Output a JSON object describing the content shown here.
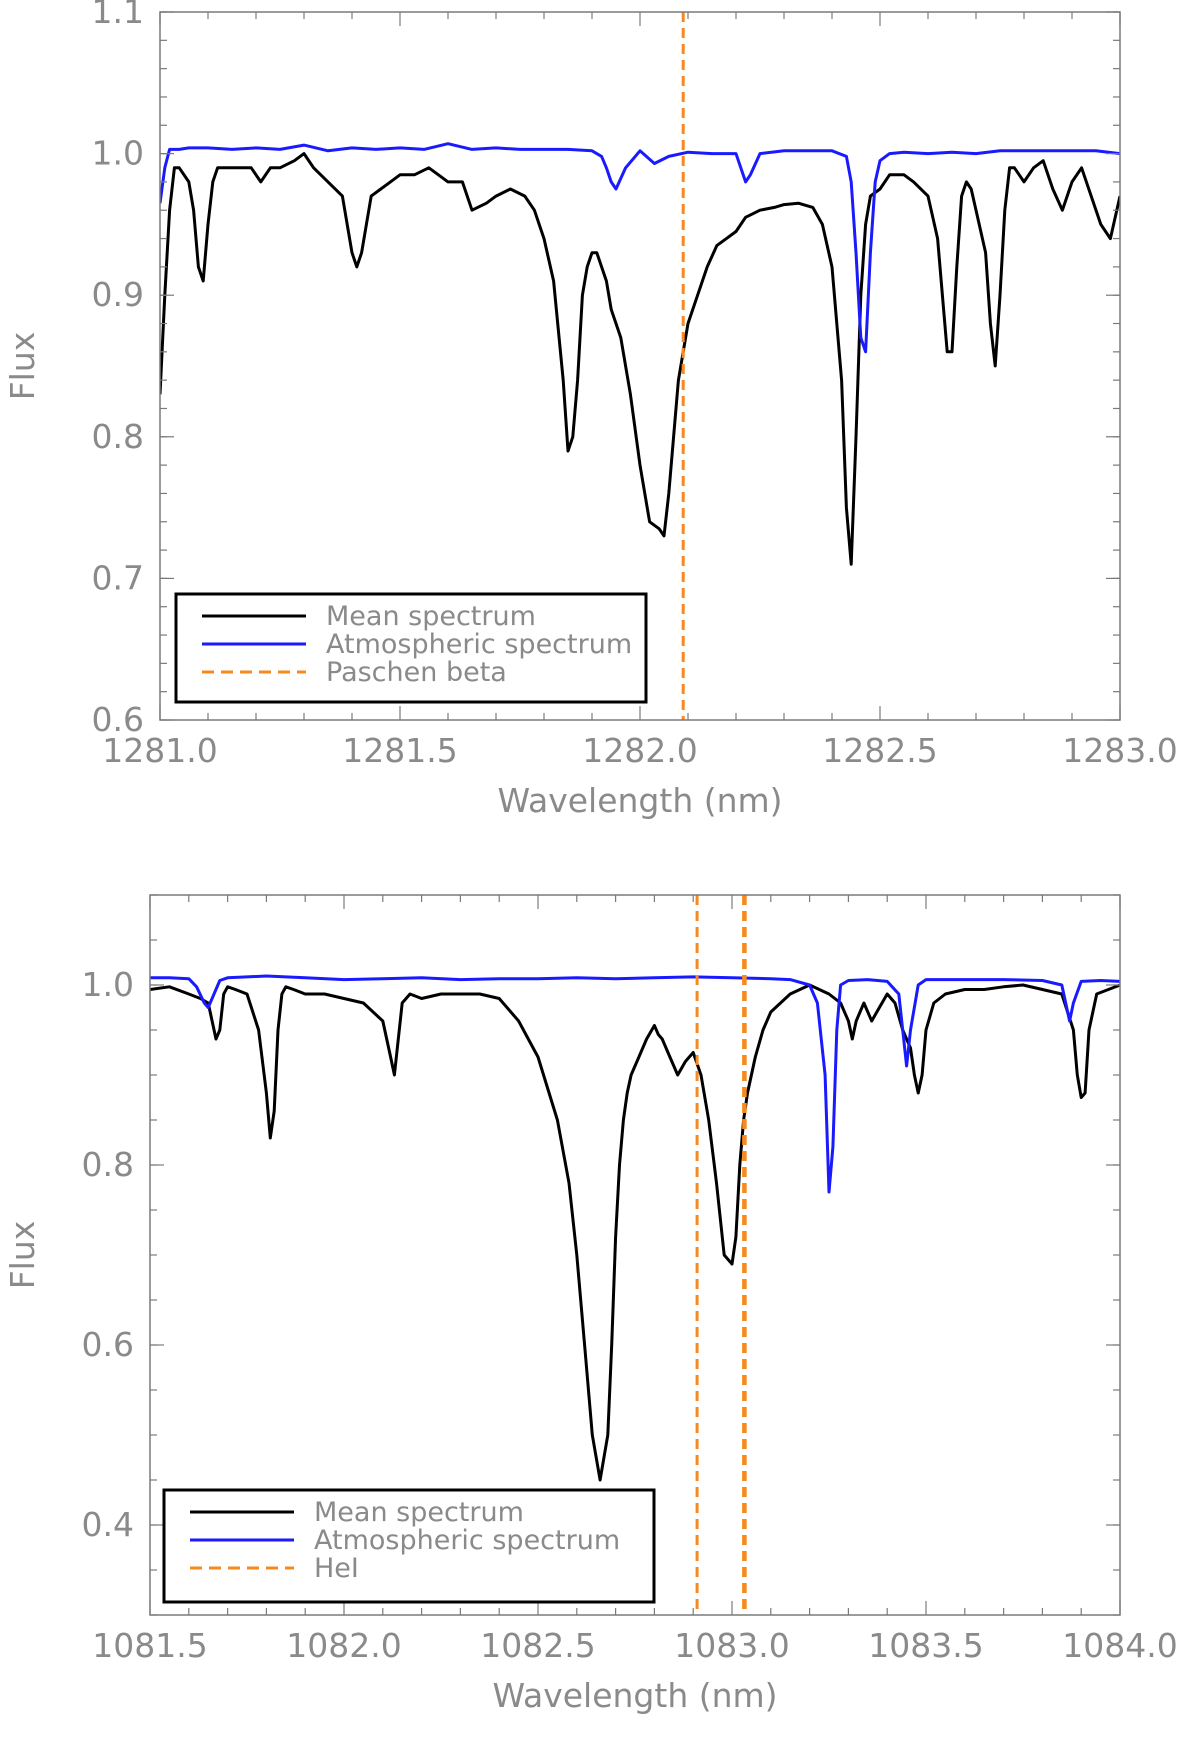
{
  "colors": {
    "mean": "#000000",
    "atmospheric": "#1a1aff",
    "line_marker": "#f7891e",
    "axis": "#7a7a7a",
    "text": "#8a8a8a"
  },
  "chart_data": [
    {
      "type": "line",
      "xlabel": "Wavelength (nm)",
      "ylabel": "Flux",
      "xlim": [
        1281.0,
        1283.0
      ],
      "ylim": [
        0.6,
        1.1
      ],
      "xticks": [
        "1281.0",
        "1281.5",
        "1282.0",
        "1282.5",
        "1283.0"
      ],
      "yticks": [
        "0.6",
        "0.7",
        "0.8",
        "0.9",
        "1.0",
        "1.1"
      ],
      "grid": false,
      "legend_position": "bottom-left",
      "series": [
        {
          "name": "Mean spectrum",
          "color": "#000000",
          "x": [
            1281.0,
            1281.01,
            1281.02,
            1281.03,
            1281.04,
            1281.06,
            1281.07,
            1281.08,
            1281.09,
            1281.1,
            1281.11,
            1281.12,
            1281.14,
            1281.16,
            1281.19,
            1281.21,
            1281.23,
            1281.25,
            1281.28,
            1281.3,
            1281.32,
            1281.35,
            1281.38,
            1281.4,
            1281.41,
            1281.42,
            1281.43,
            1281.44,
            1281.46,
            1281.48,
            1281.5,
            1281.53,
            1281.56,
            1281.58,
            1281.6,
            1281.63,
            1281.65,
            1281.68,
            1281.7,
            1281.73,
            1281.76,
            1281.78,
            1281.8,
            1281.82,
            1281.84,
            1281.85,
            1281.86,
            1281.87,
            1281.88,
            1281.89,
            1281.9,
            1281.91,
            1281.92,
            1281.93,
            1281.94,
            1281.96,
            1281.98,
            1282.0,
            1282.02,
            1282.04,
            1282.05,
            1282.06,
            1282.07,
            1282.08,
            1282.1,
            1282.12,
            1282.14,
            1282.16,
            1282.18,
            1282.2,
            1282.22,
            1282.25,
            1282.28,
            1282.3,
            1282.33,
            1282.36,
            1282.38,
            1282.4,
            1282.42,
            1282.43,
            1282.44,
            1282.45,
            1282.46,
            1282.47,
            1282.48,
            1282.5,
            1282.52,
            1282.55,
            1282.57,
            1282.6,
            1282.62,
            1282.63,
            1282.64,
            1282.65,
            1282.66,
            1282.67,
            1282.68,
            1282.69,
            1282.7,
            1282.72,
            1282.73,
            1282.74,
            1282.75,
            1282.76,
            1282.77,
            1282.78,
            1282.79,
            1282.8,
            1282.82,
            1282.84,
            1282.86,
            1282.88,
            1282.9,
            1282.92,
            1282.94,
            1282.96,
            1282.98,
            1283.0
          ],
          "y": [
            0.83,
            0.9,
            0.96,
            0.99,
            0.99,
            0.98,
            0.96,
            0.92,
            0.91,
            0.95,
            0.98,
            0.99,
            0.99,
            0.99,
            0.99,
            0.98,
            0.99,
            0.99,
            0.995,
            1.0,
            0.99,
            0.98,
            0.97,
            0.93,
            0.92,
            0.93,
            0.95,
            0.97,
            0.975,
            0.98,
            0.985,
            0.985,
            0.99,
            0.985,
            0.98,
            0.98,
            0.96,
            0.965,
            0.97,
            0.975,
            0.97,
            0.96,
            0.94,
            0.91,
            0.84,
            0.79,
            0.8,
            0.84,
            0.9,
            0.92,
            0.93,
            0.93,
            0.92,
            0.91,
            0.89,
            0.87,
            0.83,
            0.78,
            0.74,
            0.735,
            0.73,
            0.76,
            0.8,
            0.84,
            0.88,
            0.9,
            0.92,
            0.935,
            0.94,
            0.945,
            0.955,
            0.96,
            0.962,
            0.964,
            0.965,
            0.962,
            0.95,
            0.92,
            0.84,
            0.75,
            0.71,
            0.8,
            0.9,
            0.95,
            0.97,
            0.975,
            0.985,
            0.985,
            0.98,
            0.97,
            0.94,
            0.9,
            0.86,
            0.86,
            0.92,
            0.97,
            0.98,
            0.975,
            0.96,
            0.93,
            0.88,
            0.85,
            0.9,
            0.96,
            0.99,
            0.99,
            0.985,
            0.98,
            0.99,
            0.995,
            0.975,
            0.96,
            0.98,
            0.99,
            0.97,
            0.95,
            0.94,
            0.97
          ]
        },
        {
          "name": "Atmospheric spectrum",
          "color": "#1a1aff",
          "x": [
            1281.0,
            1281.01,
            1281.02,
            1281.04,
            1281.06,
            1281.1,
            1281.15,
            1281.2,
            1281.25,
            1281.3,
            1281.35,
            1281.4,
            1281.45,
            1281.5,
            1281.55,
            1281.6,
            1281.65,
            1281.7,
            1281.75,
            1281.8,
            1281.85,
            1281.9,
            1281.92,
            1281.93,
            1281.94,
            1281.95,
            1281.97,
            1282.0,
            1282.03,
            1282.06,
            1282.1,
            1282.15,
            1282.2,
            1282.21,
            1282.22,
            1282.23,
            1282.25,
            1282.3,
            1282.35,
            1282.4,
            1282.43,
            1282.44,
            1282.45,
            1282.46,
            1282.47,
            1282.48,
            1282.49,
            1282.5,
            1282.52,
            1282.55,
            1282.6,
            1282.65,
            1282.7,
            1282.75,
            1282.8,
            1282.85,
            1282.9,
            1282.95,
            1283.0
          ],
          "y": [
            0.965,
            0.99,
            1.003,
            1.003,
            1.004,
            1.004,
            1.003,
            1.004,
            1.003,
            1.006,
            1.002,
            1.004,
            1.003,
            1.004,
            1.003,
            1.007,
            1.003,
            1.004,
            1.003,
            1.003,
            1.003,
            1.002,
            0.998,
            0.99,
            0.98,
            0.975,
            0.99,
            1.002,
            0.993,
            0.998,
            1.001,
            1.0,
            1.0,
            0.99,
            0.98,
            0.985,
            1.0,
            1.002,
            1.002,
            1.002,
            0.998,
            0.98,
            0.93,
            0.87,
            0.86,
            0.93,
            0.98,
            0.995,
            1.0,
            1.001,
            1.0,
            1.001,
            1.0,
            1.002,
            1.002,
            1.002,
            1.002,
            1.002,
            1.0
          ]
        },
        {
          "name": "Paschen beta",
          "color": "#f7891e",
          "style": "dashed",
          "vertical_lines": [
            1282.09
          ]
        }
      ]
    },
    {
      "type": "line",
      "xlabel": "Wavelength (nm)",
      "ylabel": "Flux",
      "xlim": [
        1081.5,
        1084.0
      ],
      "ylim": [
        0.3,
        1.1
      ],
      "xticks": [
        "1081.5",
        "1082.0",
        "1082.5",
        "1083.0",
        "1083.5",
        "1084.0"
      ],
      "yticks": [
        "0.4",
        "0.6",
        "0.8",
        "1.0"
      ],
      "grid": false,
      "legend_position": "bottom-left",
      "series": [
        {
          "name": "Mean spectrum",
          "color": "#000000",
          "x": [
            1081.5,
            1081.55,
            1081.6,
            1081.63,
            1081.65,
            1081.66,
            1081.67,
            1081.68,
            1081.69,
            1081.7,
            1081.72,
            1081.75,
            1081.78,
            1081.8,
            1081.81,
            1081.82,
            1081.83,
            1081.84,
            1081.85,
            1081.87,
            1081.9,
            1081.95,
            1082.0,
            1082.05,
            1082.1,
            1082.12,
            1082.13,
            1082.14,
            1082.15,
            1082.16,
            1082.17,
            1082.2,
            1082.25,
            1082.3,
            1082.35,
            1082.4,
            1082.45,
            1082.5,
            1082.55,
            1082.58,
            1082.6,
            1082.62,
            1082.64,
            1082.66,
            1082.68,
            1082.69,
            1082.7,
            1082.71,
            1082.72,
            1082.73,
            1082.74,
            1082.76,
            1082.78,
            1082.8,
            1082.81,
            1082.82,
            1082.84,
            1082.86,
            1082.88,
            1082.9,
            1082.92,
            1082.94,
            1082.96,
            1082.98,
            1083.0,
            1083.01,
            1083.02,
            1083.03,
            1083.04,
            1083.06,
            1083.08,
            1083.1,
            1083.15,
            1083.2,
            1083.25,
            1083.28,
            1083.3,
            1083.31,
            1083.32,
            1083.34,
            1083.36,
            1083.38,
            1083.4,
            1083.42,
            1083.44,
            1083.46,
            1083.47,
            1083.48,
            1083.49,
            1083.5,
            1083.52,
            1083.55,
            1083.6,
            1083.65,
            1083.7,
            1083.75,
            1083.8,
            1083.85,
            1083.88,
            1083.89,
            1083.9,
            1083.91,
            1083.92,
            1083.94,
            1083.97,
            1084.0
          ],
          "y": [
            0.995,
            0.998,
            0.99,
            0.985,
            0.98,
            0.96,
            0.94,
            0.95,
            0.99,
            0.998,
            0.995,
            0.99,
            0.95,
            0.88,
            0.83,
            0.86,
            0.95,
            0.99,
            0.998,
            0.995,
            0.99,
            0.99,
            0.985,
            0.98,
            0.96,
            0.92,
            0.9,
            0.94,
            0.98,
            0.985,
            0.99,
            0.985,
            0.99,
            0.99,
            0.99,
            0.985,
            0.96,
            0.92,
            0.85,
            0.78,
            0.7,
            0.6,
            0.5,
            0.45,
            0.5,
            0.6,
            0.72,
            0.8,
            0.85,
            0.88,
            0.9,
            0.92,
            0.94,
            0.955,
            0.945,
            0.94,
            0.92,
            0.9,
            0.915,
            0.925,
            0.9,
            0.85,
            0.78,
            0.7,
            0.69,
            0.72,
            0.8,
            0.85,
            0.88,
            0.92,
            0.95,
            0.97,
            0.99,
            1.0,
            0.99,
            0.98,
            0.96,
            0.94,
            0.96,
            0.98,
            0.96,
            0.975,
            0.99,
            0.98,
            0.95,
            0.93,
            0.9,
            0.88,
            0.9,
            0.95,
            0.98,
            0.99,
            0.995,
            0.995,
            0.998,
            1.0,
            0.995,
            0.99,
            0.95,
            0.9,
            0.875,
            0.88,
            0.95,
            0.99,
            0.995,
            1.0
          ]
        },
        {
          "name": "Atmospheric spectrum",
          "color": "#1a1aff",
          "x": [
            1081.5,
            1081.55,
            1081.6,
            1081.62,
            1081.64,
            1081.65,
            1081.66,
            1081.68,
            1081.7,
            1081.8,
            1081.9,
            1082.0,
            1082.1,
            1082.2,
            1082.3,
            1082.4,
            1082.5,
            1082.6,
            1082.7,
            1082.8,
            1082.9,
            1083.0,
            1083.1,
            1083.15,
            1083.2,
            1083.22,
            1083.24,
            1083.25,
            1083.26,
            1083.27,
            1083.28,
            1083.3,
            1083.35,
            1083.4,
            1083.43,
            1083.44,
            1083.45,
            1083.46,
            1083.48,
            1083.5,
            1083.6,
            1083.7,
            1083.8,
            1083.85,
            1083.86,
            1083.87,
            1083.88,
            1083.9,
            1083.95,
            1084.0
          ],
          "y": [
            1.008,
            1.008,
            1.007,
            0.998,
            0.98,
            0.975,
            0.985,
            1.005,
            1.008,
            1.01,
            1.008,
            1.006,
            1.007,
            1.008,
            1.006,
            1.007,
            1.007,
            1.008,
            1.007,
            1.008,
            1.009,
            1.008,
            1.007,
            1.006,
            1.0,
            0.98,
            0.9,
            0.77,
            0.82,
            0.95,
            1.0,
            1.005,
            1.006,
            1.004,
            0.99,
            0.95,
            0.91,
            0.95,
            1.0,
            1.006,
            1.006,
            1.006,
            1.005,
            1.0,
            0.98,
            0.96,
            0.98,
            1.004,
            1.005,
            1.004
          ]
        },
        {
          "name": "HeI",
          "color": "#f7891e",
          "style": "dashed",
          "vertical_lines": [
            1082.91,
            1083.03,
            1083.034
          ]
        }
      ]
    }
  ]
}
